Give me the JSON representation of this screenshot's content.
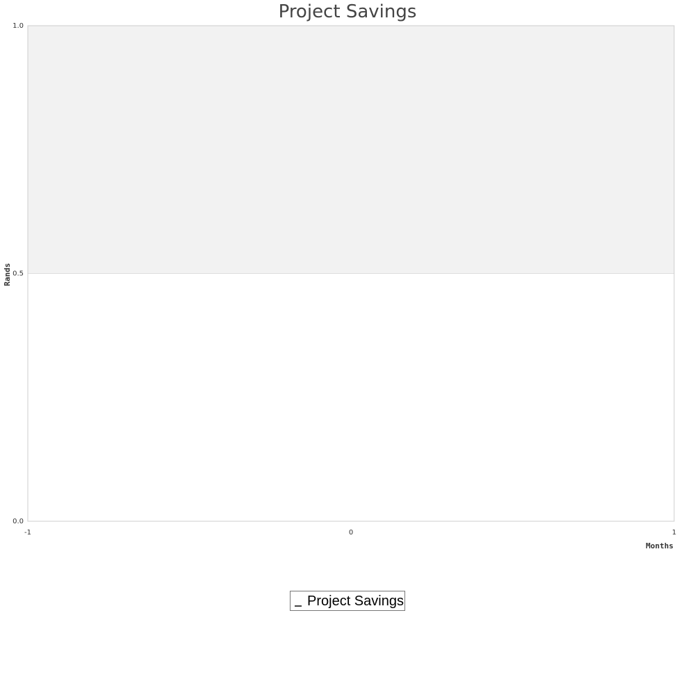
{
  "chart_data": {
    "type": "line",
    "title": "Project Savings",
    "xlabel": "Months",
    "ylabel": "Rands",
    "xlim": [
      -1,
      1
    ],
    "ylim": [
      0.0,
      1.0
    ],
    "x_ticks": [
      "-1",
      "0",
      "1"
    ],
    "y_ticks": [
      "0.0",
      "0.5",
      "1.0"
    ],
    "grid": true,
    "band_colors": [
      "#ffffff",
      "#f2f2f2"
    ],
    "series": [
      {
        "name": "Project Savings",
        "color": "#444444",
        "x": [],
        "values": []
      }
    ],
    "legend": {
      "placement": "bottom-center"
    }
  }
}
